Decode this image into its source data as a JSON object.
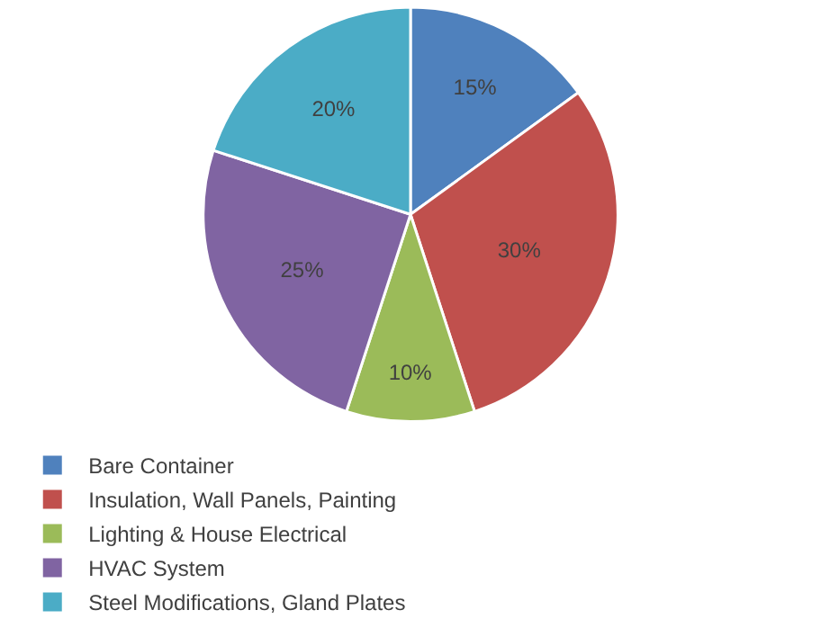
{
  "chart_data": {
    "type": "pie",
    "categories": [
      "Bare Container",
      "Insulation, Wall Panels, Painting",
      "Lighting & House Electrical",
      "HVAC System",
      "Steel Modifications, Gland Plates"
    ],
    "values": [
      15,
      30,
      10,
      25,
      20
    ],
    "value_labels": [
      "15%",
      "30%",
      "10%",
      "25%",
      "20%"
    ],
    "colors": [
      "#4f81bd",
      "#c0504d",
      "#9bbb59",
      "#8064a2",
      "#4bacc6"
    ],
    "legend": "bottom"
  }
}
